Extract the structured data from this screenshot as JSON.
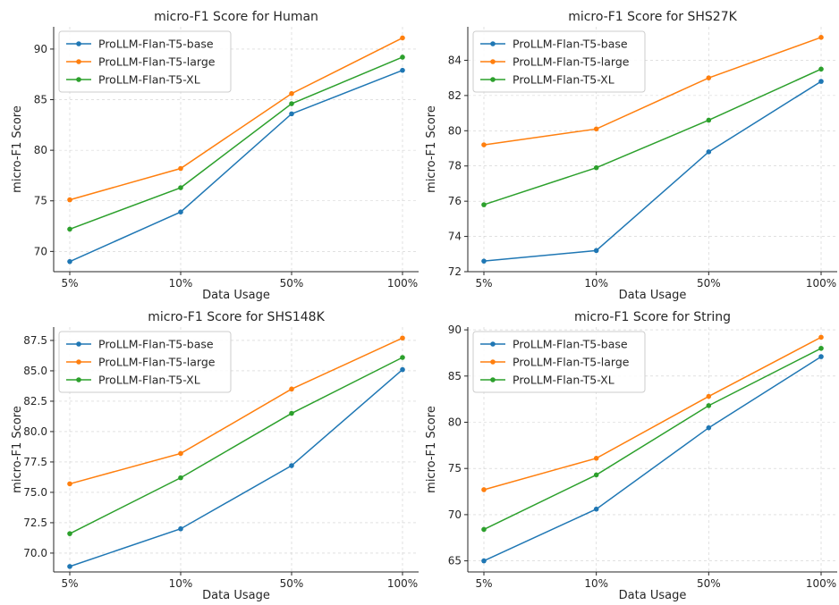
{
  "chart_data": [
    {
      "type": "line",
      "title": "micro-F1 Score for Human",
      "xlabel": "Data Usage",
      "ylabel": "micro-F1 Score",
      "categories": [
        "5%",
        "10%",
        "50%",
        "100%"
      ],
      "ylim": [
        68,
        92.2
      ],
      "yticks": [
        70,
        75,
        80,
        85,
        90
      ],
      "ytick_labels": [
        "70",
        "75",
        "80",
        "85",
        "90"
      ],
      "grid": true,
      "legend_position": "top-left",
      "series": [
        {
          "name": "ProLLM-Flan-T5-base",
          "color": "#1f77b4",
          "values": [
            69.0,
            73.9,
            83.6,
            87.9
          ]
        },
        {
          "name": "ProLLM-Flan-T5-large",
          "color": "#ff7f0e",
          "values": [
            75.1,
            78.2,
            85.6,
            91.1
          ]
        },
        {
          "name": "ProLLM-Flan-T5-XL",
          "color": "#2ca02c",
          "values": [
            72.2,
            76.3,
            84.6,
            89.2
          ]
        }
      ]
    },
    {
      "type": "line",
      "title": "micro-F1 Score for SHS27K",
      "xlabel": "Data Usage",
      "ylabel": "micro-F1 Score",
      "categories": [
        "5%",
        "10%",
        "50%",
        "100%"
      ],
      "ylim": [
        72,
        85.9
      ],
      "yticks": [
        72,
        74,
        76,
        78,
        80,
        82,
        84
      ],
      "ytick_labels": [
        "72",
        "74",
        "76",
        "78",
        "80",
        "82",
        "84"
      ],
      "grid": true,
      "legend_position": "top-left",
      "series": [
        {
          "name": "ProLLM-Flan-T5-base",
          "color": "#1f77b4",
          "values": [
            72.6,
            73.2,
            78.8,
            82.8
          ]
        },
        {
          "name": "ProLLM-Flan-T5-large",
          "color": "#ff7f0e",
          "values": [
            79.2,
            80.1,
            83.0,
            85.3
          ]
        },
        {
          "name": "ProLLM-Flan-T5-XL",
          "color": "#2ca02c",
          "values": [
            75.8,
            77.9,
            80.6,
            83.5
          ]
        }
      ]
    },
    {
      "type": "line",
      "title": "micro-F1 Score for SHS148K",
      "xlabel": "Data Usage",
      "ylabel": "micro-F1 Score",
      "categories": [
        "5%",
        "10%",
        "50%",
        "100%"
      ],
      "ylim": [
        68.45,
        88.6
      ],
      "yticks": [
        70,
        72.5,
        75,
        77.5,
        80,
        82.5,
        85,
        87.5
      ],
      "ytick_labels": [
        "70.0",
        "72.5",
        "75.0",
        "77.5",
        "80.0",
        "82.5",
        "85.0",
        "87.5"
      ],
      "grid": true,
      "legend_position": "top-left",
      "series": [
        {
          "name": "ProLLM-Flan-T5-base",
          "color": "#1f77b4",
          "values": [
            68.9,
            72.0,
            77.2,
            85.1
          ]
        },
        {
          "name": "ProLLM-Flan-T5-large",
          "color": "#ff7f0e",
          "values": [
            75.7,
            78.2,
            83.5,
            87.7
          ]
        },
        {
          "name": "ProLLM-Flan-T5-XL",
          "color": "#2ca02c",
          "values": [
            71.6,
            76.2,
            81.5,
            86.1
          ]
        }
      ]
    },
    {
      "type": "line",
      "title": "micro-F1 Score for String",
      "xlabel": "Data Usage",
      "ylabel": "micro-F1 Score",
      "categories": [
        "5%",
        "10%",
        "50%",
        "100%"
      ],
      "ylim": [
        63.8,
        90.3
      ],
      "yticks": [
        65,
        70,
        75,
        80,
        85,
        90
      ],
      "ytick_labels": [
        "65",
        "70",
        "75",
        "80",
        "85",
        "90"
      ],
      "grid": true,
      "legend_position": "top-left",
      "series": [
        {
          "name": "ProLLM-Flan-T5-base",
          "color": "#1f77b4",
          "values": [
            65.0,
            70.6,
            79.4,
            87.1
          ]
        },
        {
          "name": "ProLLM-Flan-T5-large",
          "color": "#ff7f0e",
          "values": [
            72.7,
            76.1,
            82.8,
            89.2
          ]
        },
        {
          "name": "ProLLM-Flan-T5-XL",
          "color": "#2ca02c",
          "values": [
            68.4,
            74.3,
            81.8,
            88.0
          ]
        }
      ]
    }
  ]
}
